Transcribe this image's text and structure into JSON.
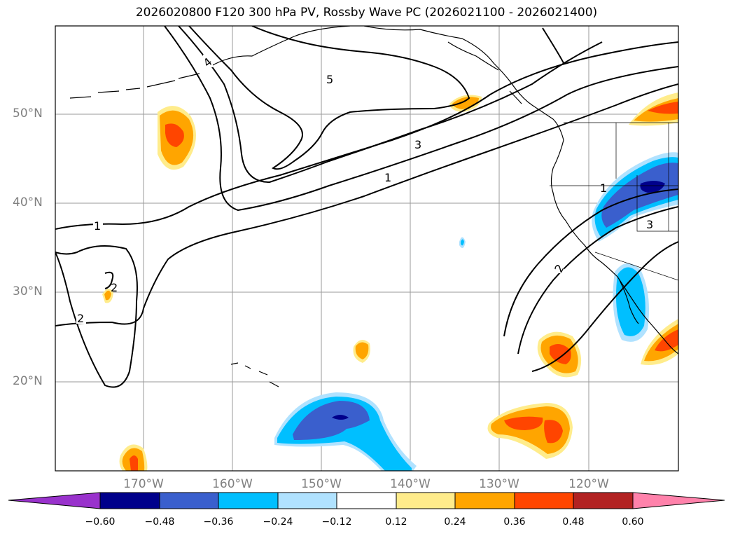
{
  "title": "2026020800 F120 300 hPa PV, Rossby Wave PC (2026021100 - 2026021400)",
  "map": {
    "lat_labels": [
      "50°N",
      "40°N",
      "30°N",
      "20°N"
    ],
    "lon_labels": [
      "170°W",
      "160°W",
      "150°W",
      "140°W",
      "130°W",
      "120°W"
    ],
    "contour_labels": [
      "5",
      "4",
      "3",
      "1",
      "1",
      "2",
      "2",
      "1",
      "2",
      "3"
    ]
  },
  "colorbar": {
    "ticks": [
      "−0.60",
      "−0.48",
      "−0.36",
      "−0.24",
      "−0.12",
      "0.12",
      "0.24",
      "0.36",
      "0.48",
      "0.60"
    ],
    "colors": [
      "#9932CC",
      "#00008B",
      "#3A5FCD",
      "#00BFFF",
      "#B0E2FF",
      "#FFFFFF",
      "#FFEC8B",
      "#FFA500",
      "#FF4500",
      "#B22222",
      "#FF82AB"
    ]
  }
}
